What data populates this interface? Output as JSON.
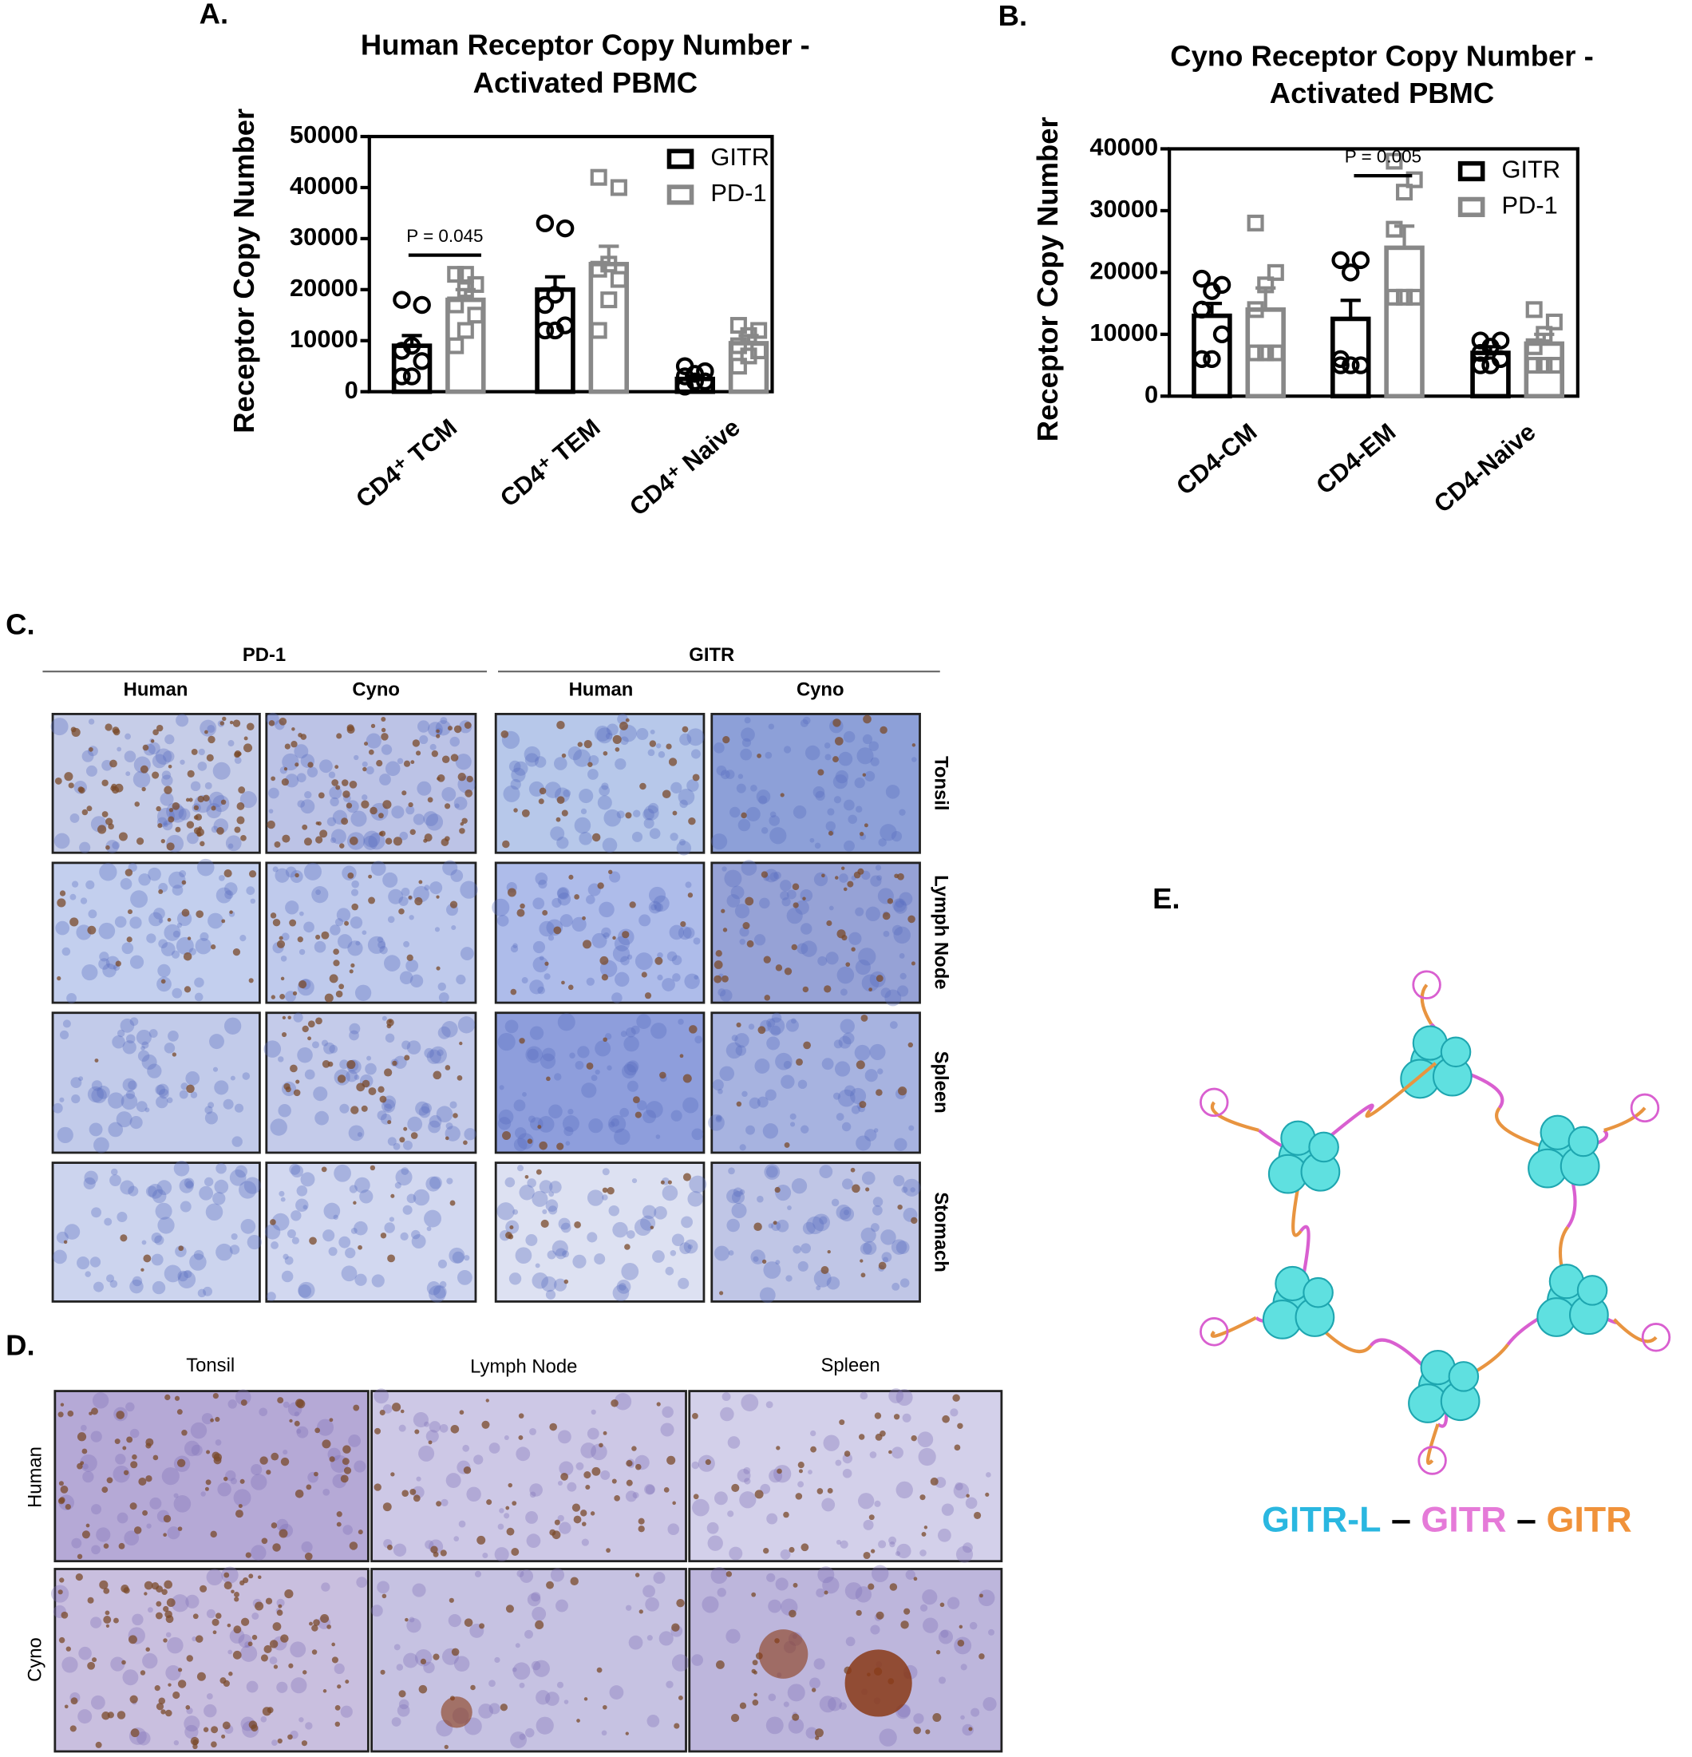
{
  "chart_data": [
    {
      "type": "bar",
      "title": [
        "Human Receptor Copy Number -",
        "Activated PBMC"
      ],
      "ylabel": "Receptor Copy Number",
      "categories": [
        "CD4⁺ TCM",
        "CD4⁺ TEM",
        "CD4⁺ Naive"
      ],
      "ylim": [
        0,
        50000
      ],
      "yticks": [
        0,
        10000,
        20000,
        30000,
        40000,
        50000
      ],
      "legend": "upper right",
      "annotations": [
        "P = 0.045"
      ],
      "series": [
        {
          "name": "GITR",
          "color": "#000000",
          "marker": "circle",
          "values": [
            9000,
            20000,
            2500
          ],
          "errors": [
            2000,
            2500,
            600
          ],
          "points": [
            [
              3000,
              3000,
              6000,
              8000,
              9000,
              17000,
              18000
            ],
            [
              12000,
              12000,
              13000,
              17000,
              19000,
              32000,
              33000
            ],
            [
              1000,
              2000,
              2000,
              3000,
              3500,
              4000,
              5000
            ]
          ]
        },
        {
          "name": "PD-1",
          "color": "#888888",
          "marker": "square",
          "values": [
            18000,
            25000,
            9500
          ],
          "errors": [
            2000,
            3500,
            1500
          ],
          "points": [
            [
              9000,
              12000,
              15000,
              17000,
              20000,
              21000,
              23000,
              23000
            ],
            [
              12000,
              18000,
              22000,
              24000,
              25000,
              40000,
              42000
            ],
            [
              5000,
              7000,
              8000,
              9000,
              11000,
              12000,
              13000
            ]
          ]
        }
      ]
    },
    {
      "type": "bar",
      "title": [
        "Cyno Receptor Copy Number -",
        "Activated PBMC"
      ],
      "ylabel": "Receptor Copy Number",
      "categories": [
        "CD4-CM",
        "CD4-EM",
        "CD4-Naive"
      ],
      "ylim": [
        0,
        40000
      ],
      "yticks": [
        0,
        10000,
        20000,
        30000,
        40000
      ],
      "legend": "upper right",
      "annotations": [
        "P = 0.005"
      ],
      "series": [
        {
          "name": "GITR",
          "color": "#000000",
          "marker": "circle",
          "values": [
            13000,
            12500,
            7000
          ],
          "errors": [
            2000,
            3000,
            1000
          ],
          "points": [
            [
              6000,
              6000,
              10000,
              14000,
              17000,
              18000,
              19000
            ],
            [
              5000,
              5000,
              5000,
              6000,
              20000,
              22000,
              22000
            ],
            [
              5000,
              5000,
              6000,
              7000,
              8000,
              9000,
              9000
            ]
          ]
        },
        {
          "name": "PD-1",
          "color": "#888888",
          "marker": "square",
          "values": [
            14000,
            24000,
            8500
          ],
          "errors": [
            3500,
            3500,
            1500
          ],
          "points": [
            [
              7000,
              7000,
              7000,
              14000,
              18000,
              20000,
              28000
            ],
            [
              16000,
              16000,
              16000,
              27000,
              33000,
              35000,
              38000
            ],
            [
              5000,
              5000,
              5000,
              8000,
              10000,
              12000,
              14000
            ]
          ]
        }
      ]
    }
  ],
  "panels": {
    "labels": [
      "A.",
      "B.",
      "C.",
      "D.",
      "E."
    ]
  },
  "panel_c": {
    "groups": [
      "PD-1",
      "GITR"
    ],
    "species": [
      "Human",
      "Cyno",
      "Human",
      "Cyno"
    ],
    "tissues": [
      "Tonsil",
      "Lymph Node",
      "Spleen",
      "Stomach"
    ]
  },
  "panel_d": {
    "tissues": [
      "Tonsil",
      "Lymph Node",
      "Spleen"
    ],
    "species": [
      "Human",
      "Cyno"
    ]
  },
  "panel_e": {
    "legend": [
      {
        "text": "GITR-L",
        "color": "#2ab7e0"
      },
      {
        "text": "–",
        "color": "#000000"
      },
      {
        "text": "GITR",
        "color": "#e57ad8"
      },
      {
        "text": "–",
        "color": "#000000"
      },
      {
        "text": "GITR",
        "color": "#f0923a"
      }
    ]
  }
}
